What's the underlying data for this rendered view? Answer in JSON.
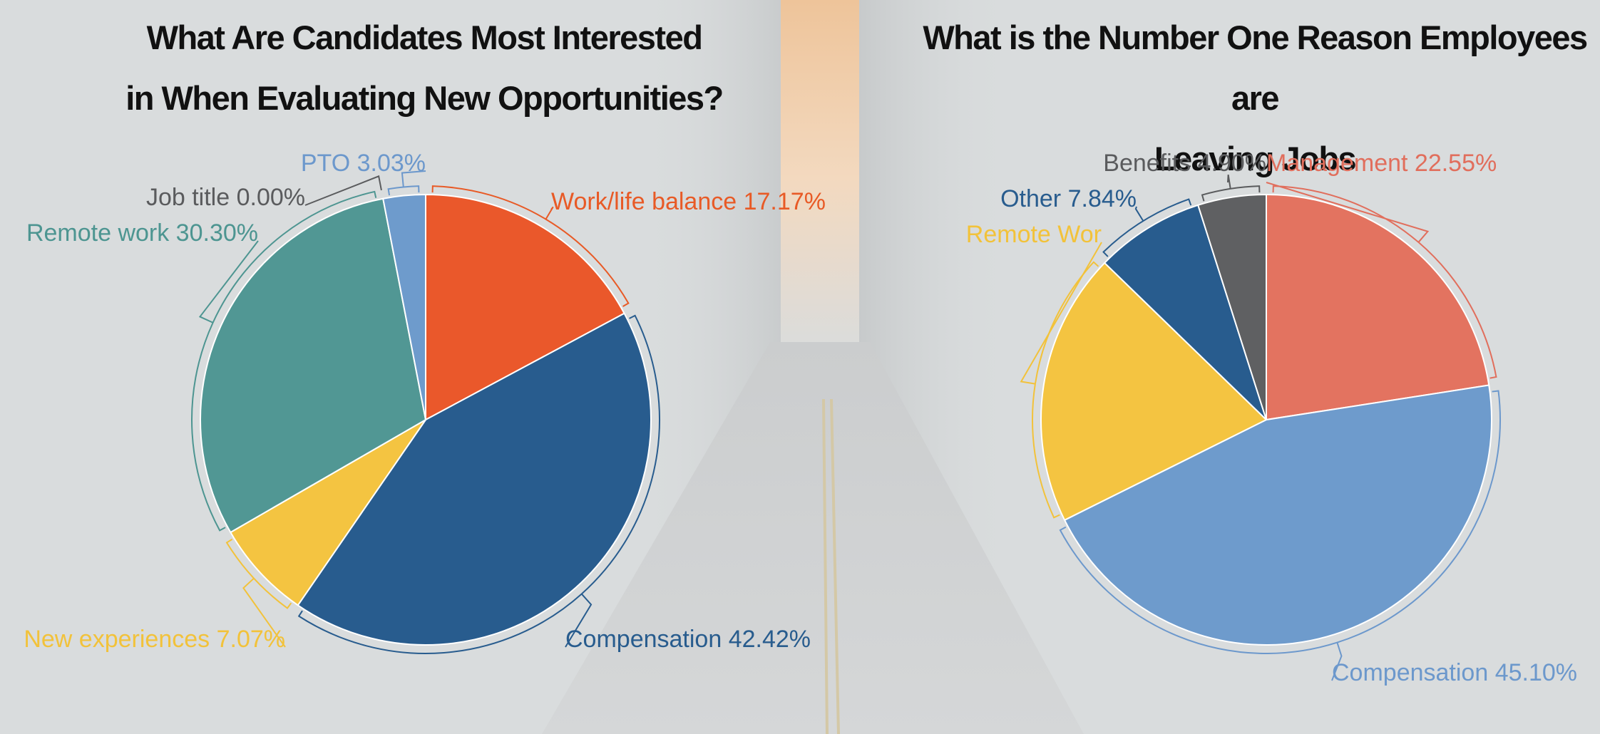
{
  "colors": {
    "background": "#d9dcdd",
    "title": "#111111"
  },
  "chart_data": [
    {
      "type": "pie",
      "title_lines": [
        "What Are Candidates Most Interested",
        "in When Evaluating New Opportunities?"
      ],
      "unit": "%",
      "slices": [
        {
          "label": "Work/life balance",
          "value": 17.17,
          "value_text": "17.17%",
          "color": "#ea582b",
          "label_color": "#e85a26"
        },
        {
          "label": "Compensation",
          "value": 42.42,
          "value_text": "42.42%",
          "color": "#285c8e",
          "label_color": "#285c8e"
        },
        {
          "label": "New experiences",
          "value": 7.07,
          "value_text": "7.07%",
          "color": "#f4c441",
          "label_color": "#f2c23a"
        },
        {
          "label": "Remote work",
          "value": 30.3,
          "value_text": "30.30%",
          "color": "#519794",
          "label_color": "#4d9591"
        },
        {
          "label": "Job title",
          "value": 0.0,
          "value_text": "0.00%",
          "color": "#5f6062",
          "label_color": "#5a5b5d"
        },
        {
          "label": "PTO",
          "value": 3.03,
          "value_text": "3.03%",
          "color": "#6e9bcc",
          "label_color": "#6c98cc"
        }
      ]
    },
    {
      "type": "pie",
      "title_lines": [
        "What is the Number One Reason Employees are",
        "Leaving Jobs"
      ],
      "unit": "%",
      "slices": [
        {
          "label": "Management",
          "value": 22.55,
          "value_text": "22.55%",
          "color": "#e37360",
          "label_color": "#e16e5c"
        },
        {
          "label": "Compensation",
          "value": 45.1,
          "value_text": "45.10%",
          "color": "#6e9bcc",
          "label_color": "#6c98cc"
        },
        {
          "label": "Remote Wor",
          "value": 19.61,
          "value_text": "",
          "color": "#f4c441",
          "label_color": "#f2c23a"
        },
        {
          "label": "Other",
          "value": 7.84,
          "value_text": "7.84%",
          "color": "#285c8e",
          "label_color": "#285c8e"
        },
        {
          "label": "Benefits",
          "value": 4.9,
          "value_text": "4.90%",
          "color": "#5f6062",
          "label_color": "#5a5b5d"
        }
      ]
    }
  ]
}
